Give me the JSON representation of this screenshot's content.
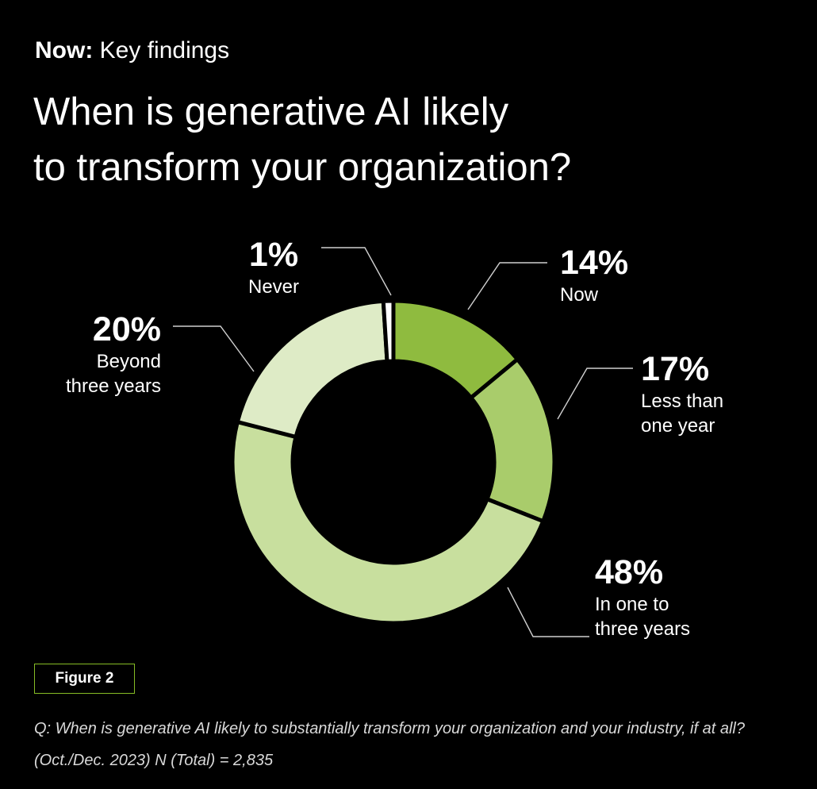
{
  "header": {
    "kicker_bold": "Now:",
    "kicker_text": "Key findings",
    "title_line1": "When is generative AI likely",
    "title_line2": "to transform your organization?"
  },
  "chart_data": {
    "type": "pie",
    "variant": "donut",
    "slices": [
      {
        "label": "Now",
        "value": 14,
        "display": "14%",
        "color": "#8fbb3f"
      },
      {
        "label": "Less than one year",
        "value": 17,
        "display": "17%",
        "color": "#a9cc6b"
      },
      {
        "label": "In one to three years",
        "value": 48,
        "display": "48%",
        "color": "#c8df9e"
      },
      {
        "label": "Beyond three years",
        "value": 20,
        "display": "20%",
        "color": "#deebc6"
      },
      {
        "label": "Never",
        "value": 1,
        "display": "1%",
        "color": "#ffffff"
      }
    ],
    "label_lines": {
      "now": [
        "Now"
      ],
      "less": [
        "Less than",
        "one year"
      ],
      "inone": [
        "In one to",
        "three years"
      ],
      "beyond": [
        "Beyond",
        "three years"
      ],
      "never": [
        "Never"
      ]
    }
  },
  "figure": {
    "label": "Figure 2",
    "note_line1": "Q: When is generative AI likely to substantially transform your organization and your industry, if at all?",
    "note_line2": "(Oct./Dec. 2023) N (Total) = 2,835"
  },
  "colors": {
    "background": "#000000",
    "accent": "#86bc25",
    "leader": "#d0d0d0"
  }
}
